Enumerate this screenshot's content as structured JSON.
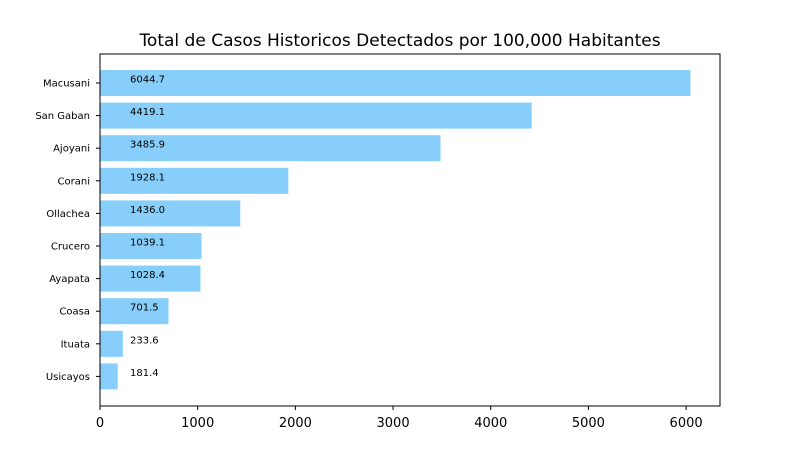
{
  "chart_data": {
    "type": "bar",
    "orientation": "horizontal",
    "title": "Total de Casos Historicos Detectados por 100,000 Habitantes",
    "xlabel": "",
    "ylabel": "",
    "categories": [
      "Macusani",
      "San Gaban",
      "Ajoyani",
      "Corani",
      "Ollachea",
      "Crucero",
      "Ayapata",
      "Coasa",
      "Ituata",
      "Usicayos"
    ],
    "values": [
      6044.7,
      4419.1,
      3485.9,
      1928.1,
      1436.0,
      1039.1,
      1028.4,
      701.5,
      233.6,
      181.4
    ],
    "value_labels": [
      "6044.7",
      "4419.1",
      "3485.9",
      "1928.1",
      "1436.0",
      "1039.1",
      "1028.4",
      "701.5",
      "233.6",
      "181.4"
    ],
    "xlim": [
      0,
      6347
    ],
    "xticks": [
      0,
      1000,
      2000,
      3000,
      4000,
      5000,
      6000
    ],
    "grid": false,
    "legend": "none",
    "bar_color": "#87cefa"
  }
}
